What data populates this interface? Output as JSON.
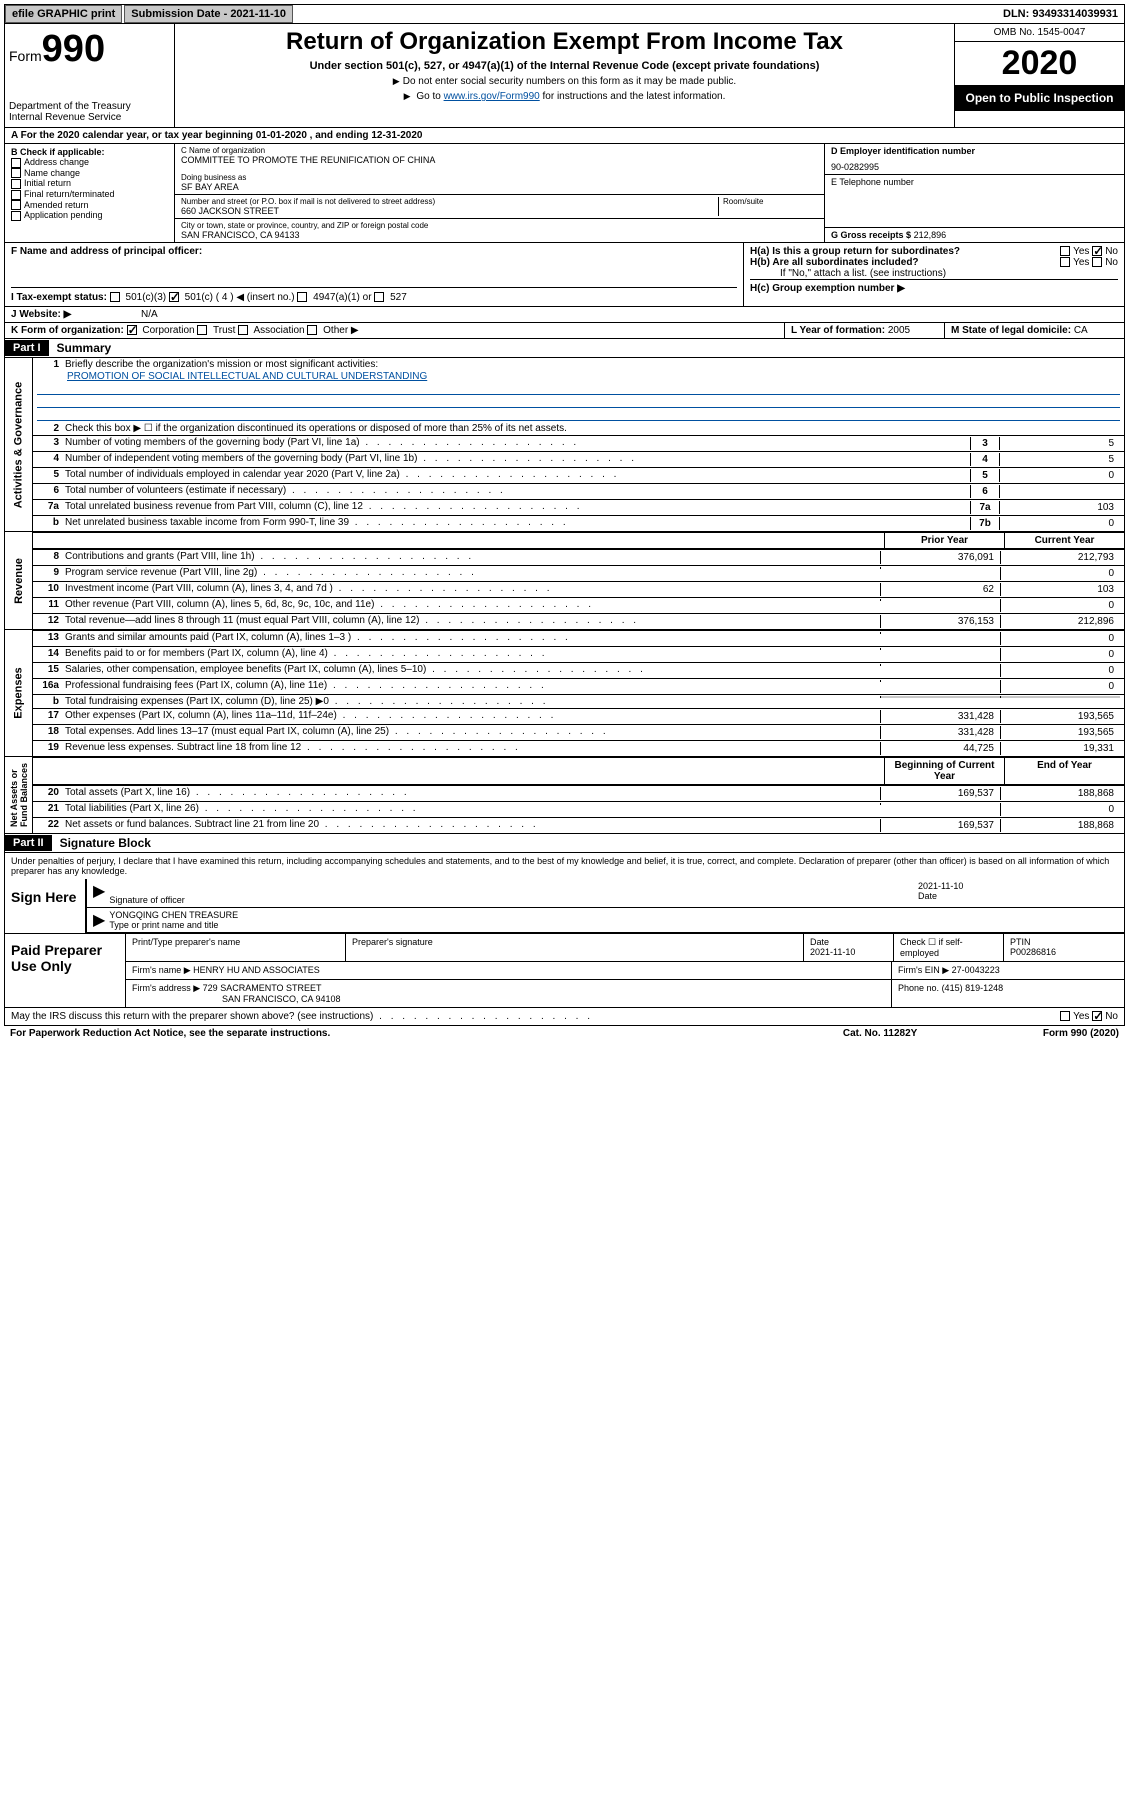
{
  "topbar": {
    "efile_label": "efile GRAPHIC print",
    "submission_label": "Submission Date - 2021-11-10",
    "dln_label": "DLN: 93493314039931"
  },
  "header": {
    "form_label": "Form",
    "form_number": "990",
    "dept1": "Department of the Treasury",
    "dept2": "Internal Revenue Service",
    "title": "Return of Organization Exempt From Income Tax",
    "subtitle": "Under section 501(c), 527, or 4947(a)(1) of the Internal Revenue Code (except private foundations)",
    "note1": "Do not enter social security numbers on this form as it may be made public.",
    "note2_pre": "Go to ",
    "note2_link": "www.irs.gov/Form990",
    "note2_post": " for instructions and the latest information.",
    "omb": "OMB No. 1545-0047",
    "year": "2020",
    "inspect": "Open to Public Inspection"
  },
  "row_a": "A For the 2020 calendar year, or tax year beginning 01-01-2020   , and ending 12-31-2020",
  "section_b": {
    "label": "B Check if applicable:",
    "items": [
      "Address change",
      "Name change",
      "Initial return",
      "Final return/terminated",
      "Amended return",
      "Application pending"
    ]
  },
  "section_c": {
    "name_label": "C Name of organization",
    "name": "COMMITTEE TO PROMOTE THE REUNIFICATION OF CHINA",
    "dba_label": "Doing business as",
    "dba": "SF BAY AREA",
    "street_label": "Number and street (or P.O. box if mail is not delivered to street address)",
    "street": "660 JACKSON STREET",
    "room_label": "Room/suite",
    "city_label": "City or town, state or province, country, and ZIP or foreign postal code",
    "city": "SAN FRANCISCO, CA  94133"
  },
  "section_d": {
    "label": "D Employer identification number",
    "value": "90-0282995"
  },
  "section_e": {
    "label": "E Telephone number",
    "value": ""
  },
  "section_g": {
    "label": "G Gross receipts $",
    "value": "212,896"
  },
  "section_f": {
    "label": "F Name and address of principal officer:"
  },
  "section_h": {
    "ha_label": "H(a)  Is this a group return for subordinates?",
    "hb_label": "H(b)  Are all subordinates included?",
    "hb_note": "If \"No,\" attach a list. (see instructions)",
    "hc_label": "H(c)  Group exemption number ▶",
    "yes": "Yes",
    "no": "No"
  },
  "section_i": {
    "label": "I    Tax-exempt status:",
    "opts": [
      "501(c)(3)",
      "501(c) ( 4 ) ◀ (insert no.)",
      "4947(a)(1) or",
      "527"
    ]
  },
  "section_j": {
    "label": "J   Website: ▶",
    "value": "N/A"
  },
  "section_k": {
    "label": "K Form of organization:",
    "opts": [
      "Corporation",
      "Trust",
      "Association",
      "Other ▶"
    ]
  },
  "section_l": {
    "label": "L Year of formation:",
    "value": "2005"
  },
  "section_m": {
    "label": "M State of legal domicile:",
    "value": "CA"
  },
  "part1": {
    "label": "Part I",
    "title": "Summary"
  },
  "summary": {
    "line1_label": "Briefly describe the organization's mission or most significant activities:",
    "line1_value": "PROMOTION OF SOCIAL INTELLECTUAL AND CULTURAL UNDERSTANDING",
    "line2": "Check this box ▶ ☐  if the organization discontinued its operations or disposed of more than 25% of its net assets.",
    "prior_year": "Prior Year",
    "current_year": "Current Year",
    "begin_year": "Beginning of Current Year",
    "end_year": "End of Year"
  },
  "activities_lines": [
    {
      "n": "3",
      "t": "Number of voting members of the governing body (Part VI, line 1a)",
      "box": "3",
      "v": "5"
    },
    {
      "n": "4",
      "t": "Number of independent voting members of the governing body (Part VI, line 1b)",
      "box": "4",
      "v": "5"
    },
    {
      "n": "5",
      "t": "Total number of individuals employed in calendar year 2020 (Part V, line 2a)",
      "box": "5",
      "v": "0"
    },
    {
      "n": "6",
      "t": "Total number of volunteers (estimate if necessary)",
      "box": "6",
      "v": ""
    },
    {
      "n": "7a",
      "t": "Total unrelated business revenue from Part VIII, column (C), line 12",
      "box": "7a",
      "v": "103"
    },
    {
      "n": "b",
      "t": "Net unrelated business taxable income from Form 990-T, line 39",
      "box": "7b",
      "v": "0"
    }
  ],
  "revenue_lines": [
    {
      "n": "8",
      "t": "Contributions and grants (Part VIII, line 1h)",
      "p": "376,091",
      "c": "212,793"
    },
    {
      "n": "9",
      "t": "Program service revenue (Part VIII, line 2g)",
      "p": "",
      "c": "0"
    },
    {
      "n": "10",
      "t": "Investment income (Part VIII, column (A), lines 3, 4, and 7d )",
      "p": "62",
      "c": "103"
    },
    {
      "n": "11",
      "t": "Other revenue (Part VIII, column (A), lines 5, 6d, 8c, 9c, 10c, and 11e)",
      "p": "",
      "c": "0"
    },
    {
      "n": "12",
      "t": "Total revenue—add lines 8 through 11 (must equal Part VIII, column (A), line 12)",
      "p": "376,153",
      "c": "212,896"
    }
  ],
  "expense_lines": [
    {
      "n": "13",
      "t": "Grants and similar amounts paid (Part IX, column (A), lines 1–3 )",
      "p": "",
      "c": "0"
    },
    {
      "n": "14",
      "t": "Benefits paid to or for members (Part IX, column (A), line 4)",
      "p": "",
      "c": "0"
    },
    {
      "n": "15",
      "t": "Salaries, other compensation, employee benefits (Part IX, column (A), lines 5–10)",
      "p": "",
      "c": "0"
    },
    {
      "n": "16a",
      "t": "Professional fundraising fees (Part IX, column (A), line 11e)",
      "p": "",
      "c": "0"
    },
    {
      "n": "b",
      "t": "Total fundraising expenses (Part IX, column (D), line 25) ▶0",
      "p": null,
      "c": null
    },
    {
      "n": "17",
      "t": "Other expenses (Part IX, column (A), lines 11a–11d, 11f–24e)",
      "p": "331,428",
      "c": "193,565"
    },
    {
      "n": "18",
      "t": "Total expenses. Add lines 13–17 (must equal Part IX, column (A), line 25)",
      "p": "331,428",
      "c": "193,565"
    },
    {
      "n": "19",
      "t": "Revenue less expenses. Subtract line 18 from line 12",
      "p": "44,725",
      "c": "19,331"
    }
  ],
  "net_lines": [
    {
      "n": "20",
      "t": "Total assets (Part X, line 16)",
      "p": "169,537",
      "c": "188,868"
    },
    {
      "n": "21",
      "t": "Total liabilities (Part X, line 26)",
      "p": "",
      "c": "0"
    },
    {
      "n": "22",
      "t": "Net assets or fund balances. Subtract line 21 from line 20",
      "p": "169,537",
      "c": "188,868"
    }
  ],
  "part2": {
    "label": "Part II",
    "title": "Signature Block"
  },
  "sig": {
    "perjury": "Under penalties of perjury, I declare that I have examined this return, including accompanying schedules and statements, and to the best of my knowledge and belief, it is true, correct, and complete. Declaration of preparer (other than officer) is based on all information of which preparer has any knowledge.",
    "sign_here": "Sign Here",
    "sig_officer": "Signature of officer",
    "date_label": "Date",
    "date": "2021-11-10",
    "name": "YONGQING CHEN TREASURE",
    "name_label": "Type or print name and title"
  },
  "paid": {
    "label": "Paid Preparer Use Only",
    "h_name": "Print/Type preparer's name",
    "h_sig": "Preparer's signature",
    "h_date": "Date",
    "date": "2021-11-10",
    "check_label": "Check ☐ if self-employed",
    "ptin_label": "PTIN",
    "ptin": "P00286816",
    "firm_name_label": "Firm's name    ▶",
    "firm_name": "HENRY HU AND ASSOCIATES",
    "firm_ein_label": "Firm's EIN ▶",
    "firm_ein": "27-0043223",
    "firm_addr_label": "Firm's address ▶",
    "firm_addr1": "729 SACRAMENTO STREET",
    "firm_addr2": "SAN FRANCISCO, CA  94108",
    "phone_label": "Phone no.",
    "phone": "(415) 819-1248"
  },
  "discuss": {
    "q": "May the IRS discuss this return with the preparer shown above? (see instructions)",
    "yes": "Yes",
    "no": "No"
  },
  "footer": {
    "left": "For Paperwork Reduction Act Notice, see the separate instructions.",
    "mid": "Cat. No. 11282Y",
    "right": "Form 990 (2020)"
  }
}
